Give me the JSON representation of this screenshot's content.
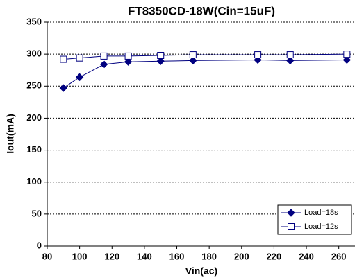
{
  "chart_data": {
    "type": "line",
    "title": "FT8350CD-18W(Cin=15uF)",
    "x_label": "Vin(ac)",
    "y_label": "Iout(mA)",
    "x": [
      90,
      100,
      115,
      130,
      150,
      170,
      210,
      230,
      265
    ],
    "series": [
      {
        "name": "Load=18s",
        "color": "#000080",
        "marker": "diamond",
        "filled": true,
        "values": [
          247,
          264,
          284,
          288,
          289,
          290,
          291,
          290,
          291
        ]
      },
      {
        "name": "Load=12s",
        "color": "#000080",
        "marker": "square",
        "filled": false,
        "values": [
          292,
          294,
          297,
          297,
          298,
          299,
          299,
          299,
          300
        ]
      }
    ],
    "xlim": [
      80,
      270
    ],
    "xticks": [
      80,
      100,
      120,
      140,
      160,
      180,
      200,
      220,
      240,
      260
    ],
    "ylim": [
      0,
      350
    ],
    "yticks": [
      0,
      50,
      100,
      150,
      200,
      250,
      300,
      350
    ],
    "grid": true,
    "legend": "lower right"
  }
}
